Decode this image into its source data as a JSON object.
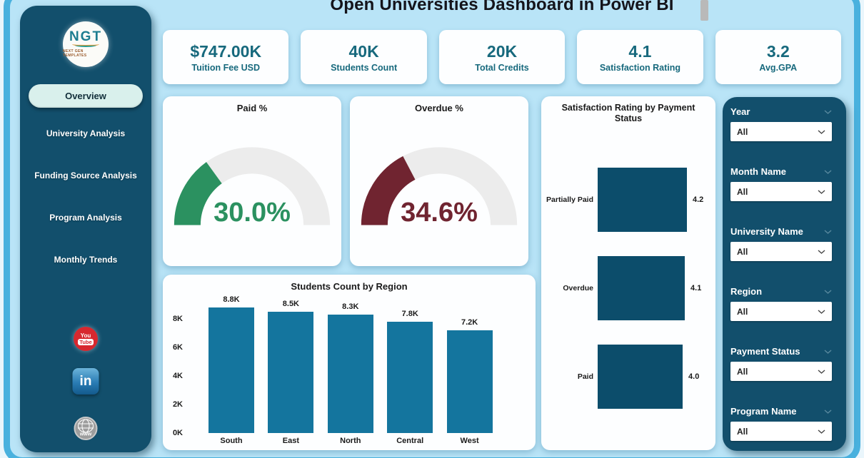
{
  "title": "Open Universities Dashboard in Power BI",
  "logo": {
    "text": "NGT",
    "subtext": "NEXT GEN TEMPLATES"
  },
  "sidebar": {
    "active_item": "Overview",
    "items": [
      "University Analysis",
      "Funding Source Analysis",
      "Program Analysis",
      "Monthly Trends"
    ],
    "social": {
      "youtube_line1": "You",
      "youtube_line2": "Tube",
      "linkedin": "in",
      "website": "www"
    }
  },
  "kpis": [
    {
      "value": "$747.00K",
      "label": "Tuition Fee USD"
    },
    {
      "value": "40K",
      "label": "Students Count"
    },
    {
      "value": "20K",
      "label": "Total Credits"
    },
    {
      "value": "4.1",
      "label": "Satisfaction Rating"
    },
    {
      "value": "3.2",
      "label": "Avg.GPA"
    }
  ],
  "chart_data": [
    {
      "type": "gauge",
      "title": "Paid %",
      "value": 30.0,
      "max": 100,
      "display": "30.0%",
      "color": "#2B9160",
      "track_color": "#ECECEC"
    },
    {
      "type": "gauge",
      "title": "Overdue %",
      "value": 34.6,
      "max": 100,
      "display": "34.6%",
      "color": "#702430",
      "track_color": "#ECECEC"
    },
    {
      "type": "bar",
      "title": "Students Count by Region",
      "categories": [
        "South",
        "East",
        "North",
        "Central",
        "West"
      ],
      "values": [
        8800,
        8500,
        8300,
        7800,
        7200
      ],
      "labels": [
        "8.8K",
        "8.5K",
        "8.3K",
        "7.8K",
        "7.2K"
      ],
      "y_ticks": [
        "0K",
        "2K",
        "4K",
        "6K",
        "8K"
      ],
      "y_tick_step": 2000,
      "ylim": [
        0,
        9000
      ],
      "xlabel": "",
      "ylabel": "",
      "grid": false,
      "bar_color": "#14759E"
    },
    {
      "type": "bar-horizontal",
      "title": "Satisfaction Rating by Payment Status",
      "categories": [
        "Partially Paid",
        "Overdue",
        "Paid"
      ],
      "values": [
        4.2,
        4.1,
        4.0
      ],
      "labels": [
        "4.2",
        "4.1",
        "4.0"
      ],
      "xlim": [
        0,
        4.2
      ],
      "grid": false,
      "bar_color": "#0C4D6B"
    }
  ],
  "filters": [
    {
      "label": "Year",
      "value": "All"
    },
    {
      "label": "Month Name",
      "value": "All"
    },
    {
      "label": "University Name",
      "value": "All"
    },
    {
      "label": "Region",
      "value": "All"
    },
    {
      "label": "Payment Status",
      "value": "All"
    },
    {
      "label": "Program Name",
      "value": "All"
    }
  ],
  "colors": {
    "frame_border": "#49B1DE",
    "background": "#B9E4F7",
    "panel": "#124F6C",
    "card": "#FDFEFF",
    "kpi_text": "#17697D",
    "title_text": "#14141B",
    "active_pill": "#D9F0EC",
    "gauge_green": "#2B9160",
    "gauge_red": "#702430",
    "bar_teal": "#14759E",
    "bar_dark": "#0C4D6B"
  }
}
